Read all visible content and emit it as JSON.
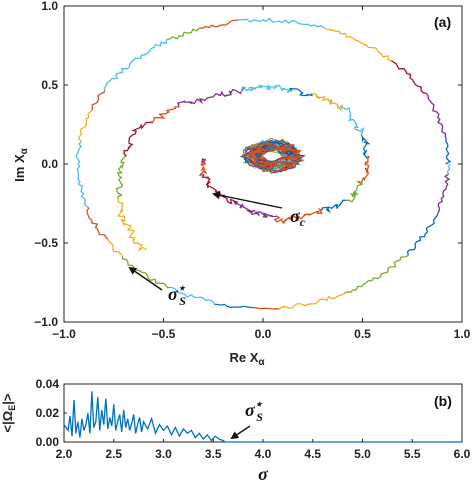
{
  "chart_data": [
    {
      "type": "line",
      "panel_label": "(a)",
      "xlabel": "Re X",
      "xlabel_sub": "α",
      "ylabel": "Im X",
      "ylabel_sub": "α",
      "xlim": [
        -1.0,
        1.0
      ],
      "ylim": [
        -1.0,
        1.0
      ],
      "xticks": [
        -1.0,
        -0.5,
        0,
        0.5,
        1.0
      ],
      "xtick_labels": [
        "−1.0",
        "−0.5",
        "0.0",
        "0.5",
        "1.0"
      ],
      "yticks": [
        -1.0,
        -0.5,
        0,
        0.5,
        1.0
      ],
      "ytick_labels": [
        "−1.0",
        "−0.5",
        "0.0",
        "0.5",
        "1.0"
      ],
      "grid": false,
      "series_colors": [
        "#0072BD",
        "#D95319",
        "#EDB120",
        "#7E2F8E",
        "#77AC30",
        "#4DBEEE",
        "#A2142F"
      ],
      "trajectories": {
        "outer_ring": {
          "center": [
            0.0,
            0.0
          ],
          "radius_x": 0.93,
          "radius_y": 0.91,
          "noise": 0.012
        },
        "middle_spiral": {
          "points": [
            [
              -0.6,
              -0.55
            ],
            [
              -0.72,
              -0.32
            ],
            [
              -0.72,
              -0.05
            ],
            [
              -0.65,
              0.2
            ],
            [
              -0.4,
              0.38
            ],
            [
              -0.15,
              0.46
            ],
            [
              0.05,
              0.49
            ],
            [
              0.25,
              0.44
            ],
            [
              0.42,
              0.34
            ],
            [
              0.52,
              0.15
            ],
            [
              0.52,
              -0.05
            ],
            [
              0.45,
              -0.22
            ],
            [
              0.3,
              -0.3
            ],
            [
              0.1,
              -0.36
            ],
            [
              -0.05,
              -0.3
            ],
            [
              -0.22,
              -0.2
            ],
            [
              -0.3,
              -0.08
            ],
            [
              -0.3,
              0.05
            ]
          ]
        },
        "inner_cluster": {
          "center": [
            0.05,
            0.05
          ],
          "radius": 0.14
        }
      },
      "annotations": [
        {
          "text_main": "σ",
          "text_sub": "c",
          "x": 0.14,
          "y": -0.26,
          "arrow_to": [
            -0.26,
            -0.17
          ]
        },
        {
          "text_main": "σ",
          "text_sup": "⋆",
          "text_sub": "S",
          "x": -0.49,
          "y": -0.87,
          "arrow_to": [
            -0.69,
            -0.69
          ]
        }
      ]
    },
    {
      "type": "line",
      "panel_label": "(b)",
      "xlabel": "σ",
      "ylabel": "<|Ω",
      "ylabel_sub": "E",
      "ylabel_end": "|>",
      "xlim": [
        2.0,
        6.0
      ],
      "ylim": [
        0.0,
        0.04
      ],
      "xticks": [
        2.0,
        2.5,
        3.0,
        3.5,
        4.0,
        4.5,
        5.0,
        5.5,
        6.0
      ],
      "xtick_labels": [
        "2.0",
        "2.5",
        "3.0",
        "3.5",
        "4.0",
        "4.5",
        "5.0",
        "5.5",
        "6.0"
      ],
      "yticks": [
        0.0,
        0.02,
        0.04
      ],
      "ytick_labels": [
        "0.00",
        "0.02",
        "0.04"
      ],
      "color": "#0072BD",
      "x": [
        2.0,
        2.04,
        2.06,
        2.08,
        2.1,
        2.12,
        2.14,
        2.16,
        2.18,
        2.2,
        2.22,
        2.24,
        2.26,
        2.28,
        2.3,
        2.32,
        2.34,
        2.36,
        2.38,
        2.4,
        2.42,
        2.44,
        2.46,
        2.48,
        2.5,
        2.52,
        2.54,
        2.56,
        2.58,
        2.6,
        2.62,
        2.64,
        2.66,
        2.68,
        2.7,
        2.72,
        2.74,
        2.76,
        2.78,
        2.8,
        2.84,
        2.88,
        2.92,
        2.96,
        3.0,
        3.04,
        3.08,
        3.12,
        3.16,
        3.2,
        3.24,
        3.28,
        3.32,
        3.36,
        3.4,
        3.44,
        3.48,
        3.52,
        3.56,
        3.6,
        3.62,
        3.7,
        4.0,
        5.0,
        6.0
      ],
      "values": [
        0.012,
        0.008,
        0.018,
        0.004,
        0.029,
        0.006,
        0.014,
        0.003,
        0.016,
        0.008,
        0.012,
        0.02,
        0.006,
        0.035,
        0.01,
        0.014,
        0.031,
        0.008,
        0.022,
        0.012,
        0.03,
        0.009,
        0.017,
        0.011,
        0.026,
        0.008,
        0.014,
        0.019,
        0.007,
        0.022,
        0.01,
        0.016,
        0.008,
        0.013,
        0.019,
        0.006,
        0.012,
        0.017,
        0.007,
        0.014,
        0.009,
        0.016,
        0.006,
        0.012,
        0.008,
        0.011,
        0.005,
        0.01,
        0.004,
        0.009,
        0.006,
        0.008,
        0.003,
        0.006,
        0.002,
        0.005,
        0.001,
        0.004,
        0.002,
        0.001,
        0.0,
        0.0,
        0.0,
        0.0,
        0.0
      ],
      "annotation": {
        "text_main": "σ",
        "text_sup": "⋆",
        "text_sub": "S",
        "x": 3.77,
        "y": 0.018,
        "arrow_to": [
          3.58,
          0.002
        ]
      }
    }
  ]
}
